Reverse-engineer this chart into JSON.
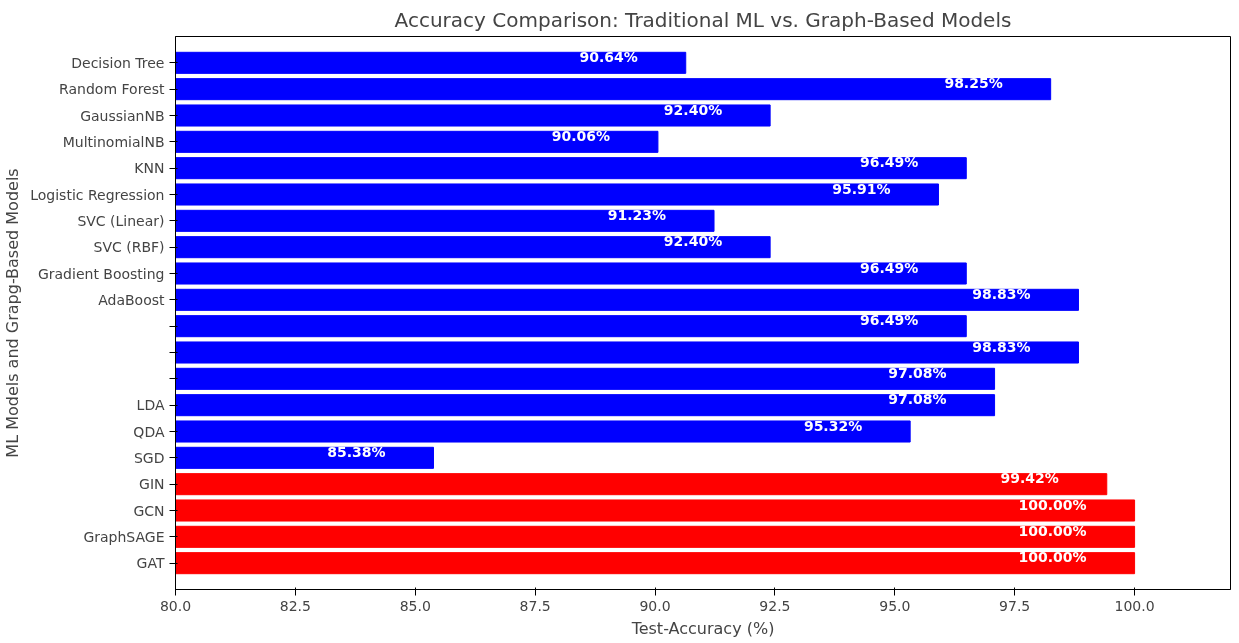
{
  "chart_data": {
    "type": "bar",
    "orientation": "horizontal",
    "title": "Accuracy Comparison: Traditional ML vs. Graph-Based Models",
    "xlabel": "Test-Accuracy (%)",
    "ylabel": "ML Models and Grapg-Based Models",
    "categories": [
      "Decision Tree",
      "Random Forest",
      "GaussianNB",
      "MultinomialNB",
      "KNN",
      "Logistic Regression",
      "SVC (Linear)",
      "SVC (RBF)",
      "Gradient Boosting",
      "AdaBoost",
      null,
      null,
      null,
      "LDA",
      "QDA",
      "SGD",
      "GIN",
      "GCN",
      "GraphSAGE",
      "GAT"
    ],
    "values": [
      90.64,
      98.25,
      92.4,
      90.06,
      96.49,
      95.91,
      91.23,
      92.4,
      96.49,
      98.83,
      96.49,
      98.83,
      97.08,
      97.08,
      95.32,
      85.38,
      99.42,
      100.0,
      100.0,
      100.0
    ],
    "value_labels": [
      "90.64%",
      "98.25%",
      "92.40%",
      "90.06%",
      "96.49%",
      "95.91%",
      "91.23%",
      "92.40%",
      "96.49%",
      "98.83%",
      "96.49%",
      "98.83%",
      "97.08%",
      "97.08%",
      "95.32%",
      "85.38%",
      "99.42%",
      "100.00%",
      "100.00%",
      "100.00%"
    ],
    "colors": [
      "#0000ff",
      "#0000ff",
      "#0000ff",
      "#0000ff",
      "#0000ff",
      "#0000ff",
      "#0000ff",
      "#0000ff",
      "#0000ff",
      "#0000ff",
      "#0000ff",
      "#0000ff",
      "#0000ff",
      "#0000ff",
      "#0000ff",
      "#0000ff",
      "#ff0000",
      "#ff0000",
      "#ff0000",
      "#ff0000"
    ],
    "xlim": [
      80,
      102
    ],
    "xticks": [
      {
        "value": 80,
        "label": "80.0"
      },
      {
        "value": 82.5,
        "label": "82.5"
      },
      {
        "value": 85,
        "label": "85.0"
      },
      {
        "value": 87.5,
        "label": "87.5"
      },
      {
        "value": 90,
        "label": "90.0"
      },
      {
        "value": 92.5,
        "label": "92.5"
      },
      {
        "value": 95,
        "label": "95.0"
      },
      {
        "value": 97.5,
        "label": "97.5"
      },
      {
        "value": 100,
        "label": "100.0"
      }
    ],
    "grid": false
  }
}
